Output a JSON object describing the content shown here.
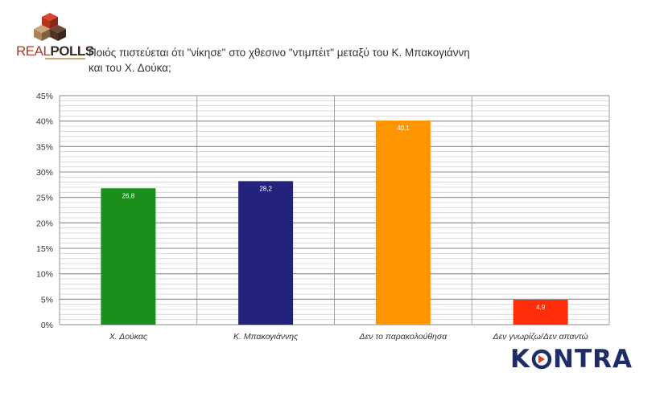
{
  "logo": {
    "real": "REAL",
    "polls": "POLLS"
  },
  "title": "Ποιός πιστεύεται ότι \"νίκησε\" στο χθεσινο \"ντιμπέιτ\" μεταξύ του Κ. Μπακογιάννη\nκαι του Χ. Δούκα;",
  "brand": {
    "before": "K",
    "after": "NTRA",
    "accent": "#e53a2c"
  },
  "chart_data": {
    "type": "bar",
    "categories": [
      "Χ. Δούκας",
      "Κ. Μπακογιάννης",
      "Δεν το παρακολούθησα",
      "Δεν γνωρίζω/Δεν απαντώ"
    ],
    "values": [
      26.8,
      28.2,
      40.1,
      4.9
    ],
    "value_labels": [
      "26,8",
      "28,2",
      "40,1",
      "4,9"
    ],
    "colors": [
      "#1b8f1b",
      "#23237e",
      "#ff9600",
      "#ff2d0a"
    ],
    "ylim": [
      0,
      45
    ],
    "yticks": [
      "0%",
      "5%",
      "10%",
      "15%",
      "20%",
      "25%",
      "30%",
      "35%",
      "40%",
      "45%"
    ],
    "grid": true,
    "legend": false
  }
}
